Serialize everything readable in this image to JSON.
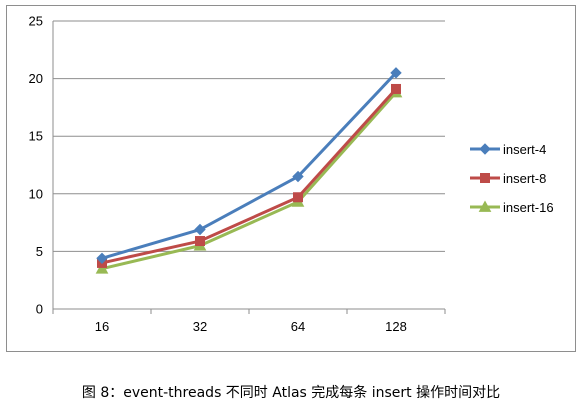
{
  "caption": "图 8：event-threads 不同时 Atlas 完成每条 insert 操作时间对比",
  "colors": {
    "insert-4": "#4a7ebb",
    "insert-8": "#be4b48",
    "insert-16": "#98b954",
    "gridline": "#8e8e8e",
    "axis": "#8e8e8e"
  },
  "chart_data": {
    "type": "line",
    "categories": [
      "16",
      "32",
      "64",
      "128"
    ],
    "series": [
      {
        "name": "insert-4",
        "values": [
          4.4,
          6.9,
          11.5,
          20.5
        ],
        "marker": "diamond"
      },
      {
        "name": "insert-8",
        "values": [
          4.0,
          5.9,
          9.7,
          19.1
        ],
        "marker": "square"
      },
      {
        "name": "insert-16",
        "values": [
          3.5,
          5.5,
          9.3,
          18.8
        ],
        "marker": "triangle"
      }
    ],
    "yticks": [
      "0",
      "5",
      "10",
      "15",
      "20",
      "25"
    ],
    "ylim": [
      0,
      25
    ],
    "grid": true,
    "legend": "right"
  }
}
